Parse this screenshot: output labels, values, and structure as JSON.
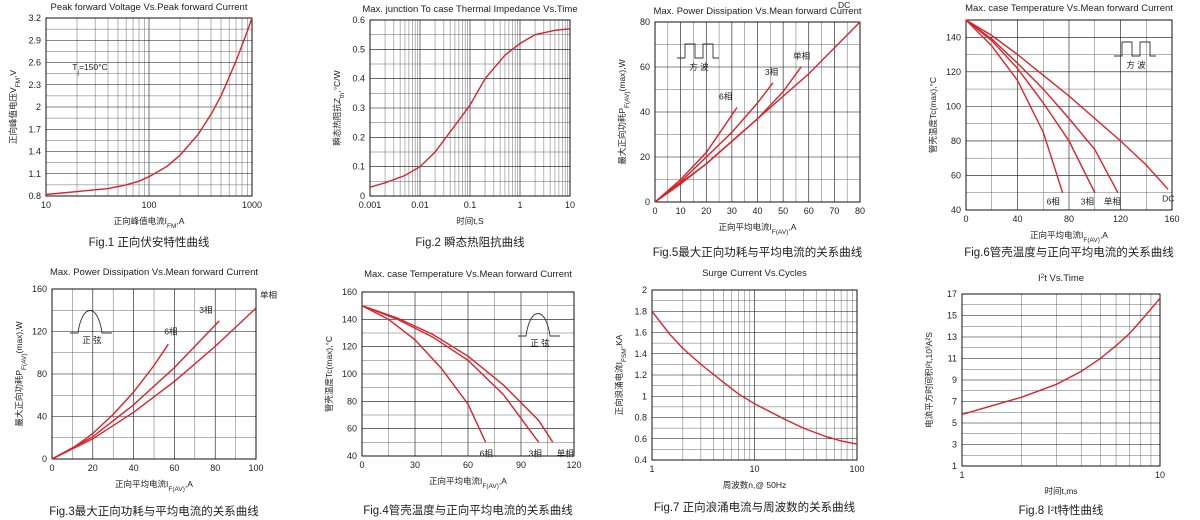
{
  "chart_data": [
    {
      "id": "fig1",
      "type": "line",
      "title": "Peak forward Voltage Vs.Peak forward Current",
      "caption": "Fig.1 正向伏安特性曲线",
      "xlabel": "正向峰值电流I",
      "xlabel_sub": "FM",
      "xlabel_unit": ",A",
      "ylabel": "正向峰值电压V",
      "ylabel_sub": "FM",
      "ylabel_unit": ",V",
      "xscale": "log",
      "xlim": [
        10,
        1000
      ],
      "ylim": [
        0.8,
        3.2
      ],
      "xticks": [
        "10",
        "100",
        "1000"
      ],
      "yticks": [
        "0.8",
        "1.1",
        "1.4",
        "1.7",
        "2",
        "2.3",
        "2.6",
        "2.9",
        "3.2"
      ],
      "ytick_values": [
        0.8,
        1.1,
        1.4,
        1.7,
        2.0,
        2.3,
        2.6,
        2.9,
        3.2
      ],
      "annotations": [
        {
          "text": "T",
          "sub": "j",
          "rest": "=150°C",
          "x": 18,
          "y": 2.5
        }
      ],
      "series": [
        {
          "x": [
            10,
            20,
            40,
            60,
            80,
            100,
            150,
            200,
            300,
            400,
            500,
            600,
            700,
            800,
            900,
            1000
          ],
          "y": [
            0.82,
            0.86,
            0.9,
            0.95,
            1.0,
            1.06,
            1.2,
            1.35,
            1.63,
            1.9,
            2.15,
            2.4,
            2.62,
            2.83,
            3.02,
            3.2
          ]
        }
      ]
    },
    {
      "id": "fig2",
      "type": "line",
      "title": "Max. junction To case Thermal Impedance Vs.Time",
      "caption": "Fig.2  瞬态热阻抗曲线",
      "xlabel": "时间t,S",
      "xlabel_sub": "",
      "xlabel_unit": "",
      "ylabel": "瞬态热阻抗Z",
      "ylabel_sub": "th",
      "ylabel_unit": ",°C/W",
      "xscale": "log",
      "xlim": [
        0.001,
        10
      ],
      "ylim": [
        0,
        0.6
      ],
      "xticks": [
        "0.001",
        "0.01",
        "0.1",
        "1",
        "10"
      ],
      "yticks": [
        "0",
        "0.1",
        "0.2",
        "0.3",
        "0.4",
        "0.5",
        "0.6"
      ],
      "ytick_values": [
        0,
        0.1,
        0.2,
        0.3,
        0.4,
        0.5,
        0.6
      ],
      "series": [
        {
          "x": [
            0.001,
            0.002,
            0.005,
            0.01,
            0.02,
            0.05,
            0.1,
            0.2,
            0.5,
            1,
            2,
            5,
            10
          ],
          "y": [
            0.03,
            0.045,
            0.07,
            0.1,
            0.15,
            0.24,
            0.31,
            0.4,
            0.48,
            0.52,
            0.55,
            0.565,
            0.57
          ]
        }
      ]
    },
    {
      "id": "fig5",
      "type": "line",
      "title": "Max. Power Dissipation Vs.Mean forward Current",
      "caption": "Fig.5最大正向功耗与平均电流的关系曲线",
      "xlabel": "正向平均电流I",
      "xlabel_sub": "F(AV)",
      "xlabel_unit": ",A",
      "ylabel": "最大正向功耗P",
      "ylabel_sub": "F(AV)",
      "ylabel_unit": "(max),W",
      "xscale": "linear",
      "xlim": [
        0,
        80
      ],
      "ylim": [
        0,
        80
      ],
      "xticks": [
        "0",
        "10",
        "20",
        "30",
        "40",
        "50",
        "60",
        "70",
        "80"
      ],
      "xtick_values": [
        0,
        10,
        20,
        30,
        40,
        50,
        60,
        70,
        80
      ],
      "yticks": [
        "0",
        "20",
        "40",
        "60",
        "80"
      ],
      "ytick_values": [
        0,
        20,
        40,
        60,
        80
      ],
      "icon": "square-wave",
      "icon_label": "方  波",
      "series": [
        {
          "name": "6相",
          "x": [
            0,
            10,
            20,
            32
          ],
          "y": [
            0,
            10,
            22,
            42
          ]
        },
        {
          "name": "3相",
          "x": [
            0,
            10,
            20,
            30,
            40,
            46
          ],
          "y": [
            0,
            9,
            20,
            31,
            44,
            53
          ]
        },
        {
          "name": "单相",
          "x": [
            0,
            10,
            20,
            30,
            40,
            50,
            57
          ],
          "y": [
            0,
            8,
            17,
            27,
            37,
            49,
            60
          ]
        },
        {
          "name": "DC",
          "x": [
            0,
            20,
            40,
            60,
            80
          ],
          "y": [
            0,
            17,
            37,
            57,
            80
          ]
        }
      ]
    },
    {
      "id": "fig6",
      "type": "line",
      "title": "Max. case Temperature Vs.Mean forward Current",
      "caption": "Fig.6管壳温度与正向平均电流的关系曲线",
      "xlabel": "正向平均电流I",
      "xlabel_sub": "F(AV)",
      "xlabel_unit": ",A",
      "ylabel": "管壳温度Tc(max),°C",
      "ylabel_sub": "",
      "ylabel_unit": "",
      "xscale": "linear",
      "xlim": [
        0,
        160
      ],
      "ylim": [
        40,
        150
      ],
      "xticks": [
        "0",
        "40",
        "80",
        "120",
        "160"
      ],
      "xtick_values": [
        0,
        40,
        80,
        120,
        160
      ],
      "yticks": [
        "40",
        "60",
        "80",
        "100",
        "120",
        "140"
      ],
      "ytick_values": [
        40,
        60,
        80,
        100,
        120,
        140
      ],
      "icon": "square-wave",
      "icon_label": "方  波",
      "series": [
        {
          "name": "6相",
          "x": [
            0,
            20,
            40,
            60,
            75
          ],
          "y": [
            150,
            135,
            115,
            85,
            50
          ]
        },
        {
          "name": "3相",
          "x": [
            0,
            20,
            40,
            60,
            80,
            100
          ],
          "y": [
            150,
            138,
            122,
            102,
            80,
            50
          ]
        },
        {
          "name": "单相",
          "x": [
            0,
            20,
            40,
            60,
            80,
            100,
            118
          ],
          "y": [
            150,
            139,
            125,
            110,
            93,
            75,
            50
          ]
        },
        {
          "name": "DC",
          "x": [
            0,
            20,
            40,
            60,
            80,
            100,
            120,
            140,
            157
          ],
          "y": [
            150,
            141,
            130,
            118,
            106,
            93,
            80,
            66,
            52
          ]
        }
      ]
    },
    {
      "id": "fig3",
      "type": "line",
      "title": "Max. Power Dissipation Vs.Mean forward Current",
      "caption": "Fig.3最大正向功耗与平均电流的关系曲线",
      "xlabel": "正向平均电流I",
      "xlabel_sub": "F(AV)",
      "xlabel_unit": ",A",
      "ylabel": "最大正向功耗P",
      "ylabel_sub": "F(AV)",
      "ylabel_unit": "(max),W",
      "xscale": "linear",
      "xlim": [
        0,
        100
      ],
      "ylim": [
        0,
        160
      ],
      "xticks": [
        "0",
        "20",
        "40",
        "60",
        "80",
        "100"
      ],
      "xtick_values": [
        0,
        20,
        40,
        60,
        80,
        100
      ],
      "yticks": [
        "0",
        "40",
        "80",
        "120",
        "160"
      ],
      "ytick_values": [
        0,
        40,
        80,
        120,
        160
      ],
      "icon": "half-sine",
      "icon_label": "正  弦",
      "series": [
        {
          "name": "6相",
          "x": [
            0,
            10,
            20,
            30,
            40,
            50,
            57
          ],
          "y": [
            0,
            10,
            24,
            42,
            63,
            88,
            108
          ]
        },
        {
          "name": "3相",
          "x": [
            0,
            20,
            40,
            60,
            82
          ],
          "y": [
            0,
            21,
            51,
            86,
            130
          ]
        },
        {
          "name": "单相",
          "x": [
            0,
            20,
            40,
            60,
            80,
            100
          ],
          "y": [
            0,
            19,
            44,
            73,
            106,
            142
          ]
        }
      ]
    },
    {
      "id": "fig4",
      "type": "line",
      "title": "Max. case Temperature Vs.Mean forward Current",
      "caption": "Fig.4管壳温度与正向平均电流的关系曲线",
      "xlabel": "正向平均电流I",
      "xlabel_sub": "F(AV)",
      "xlabel_unit": ",A",
      "ylabel": "管壳温度Tc(max),°C",
      "ylabel_sub": "",
      "ylabel_unit": "",
      "xscale": "linear",
      "xlim": [
        0,
        120
      ],
      "ylim": [
        40,
        160
      ],
      "xticks": [
        "0",
        "30",
        "60",
        "90",
        "120"
      ],
      "xtick_values": [
        0,
        30,
        60,
        90,
        120
      ],
      "yticks": [
        "40",
        "60",
        "80",
        "100",
        "120",
        "140",
        "160"
      ],
      "ytick_values": [
        40,
        60,
        80,
        100,
        120,
        140,
        160
      ],
      "icon": "half-sine",
      "icon_label": "正  弦",
      "series": [
        {
          "name": "6相",
          "x": [
            0,
            15,
            30,
            45,
            60,
            70
          ],
          "y": [
            150,
            140,
            125,
            104,
            78,
            50
          ]
        },
        {
          "name": "3相",
          "x": [
            0,
            20,
            40,
            60,
            80,
            100
          ],
          "y": [
            150,
            140,
            127,
            110,
            85,
            50
          ]
        },
        {
          "name": "单相",
          "x": [
            0,
            20,
            40,
            60,
            80,
            100,
            108
          ],
          "y": [
            150,
            141,
            129,
            113,
            92,
            66,
            50
          ]
        }
      ]
    },
    {
      "id": "fig7",
      "type": "line",
      "title": "Surge Current Vs.Cycles",
      "caption": "Fig.7 正向浪涌电流与周波数的关系曲线",
      "xlabel": "周波数n,@ 50Hz",
      "xlabel_sub": "",
      "xlabel_unit": "",
      "ylabel": "正向浪涌电流I",
      "ylabel_sub": "FSM",
      "ylabel_unit": ",KA",
      "xscale": "log",
      "xlim": [
        1,
        100
      ],
      "ylim": [
        0.4,
        2
      ],
      "xticks": [
        "1",
        "10",
        "100"
      ],
      "yticks": [
        "0.4",
        "0.6",
        "0.8",
        "1",
        "1.2",
        "1.4",
        "1.6",
        "1.8",
        "2"
      ],
      "ytick_values": [
        0.4,
        0.6,
        0.8,
        1.0,
        1.2,
        1.4,
        1.6,
        1.8,
        2.0
      ],
      "series": [
        {
          "x": [
            1,
            1.5,
            2,
            3,
            5,
            7,
            10,
            20,
            30,
            50,
            70,
            100
          ],
          "y": [
            1.8,
            1.58,
            1.45,
            1.3,
            1.13,
            1.02,
            0.93,
            0.78,
            0.7,
            0.62,
            0.58,
            0.55
          ]
        }
      ]
    },
    {
      "id": "fig8",
      "type": "line",
      "title": "I",
      "title_sup": "2",
      "title_rest": "t  Vs.Time",
      "caption": "Fig.8 I",
      "caption_sup": "2",
      "caption_rest": "t特性曲线",
      "xlabel": "时间t,ms",
      "xlabel_sub": "",
      "xlabel_unit": "",
      "ylabel": "电流平方时间积I²t,10³A²S",
      "ylabel_sub": "",
      "ylabel_unit": "",
      "xscale": "log",
      "xlim": [
        1,
        10
      ],
      "ylim": [
        1,
        17
      ],
      "xticks": [
        "1",
        "10"
      ],
      "yticks": [
        "1",
        "3",
        "5",
        "7",
        "9",
        "11",
        "13",
        "15",
        "17"
      ],
      "ytick_values": [
        1,
        3,
        5,
        7,
        9,
        11,
        13,
        15,
        17
      ],
      "series": [
        {
          "x": [
            1,
            2,
            3,
            4,
            5,
            6,
            7,
            8,
            9,
            10
          ],
          "y": [
            5.8,
            7.4,
            8.6,
            9.8,
            11.0,
            12.2,
            13.3,
            14.5,
            15.6,
            16.6
          ]
        }
      ]
    }
  ]
}
